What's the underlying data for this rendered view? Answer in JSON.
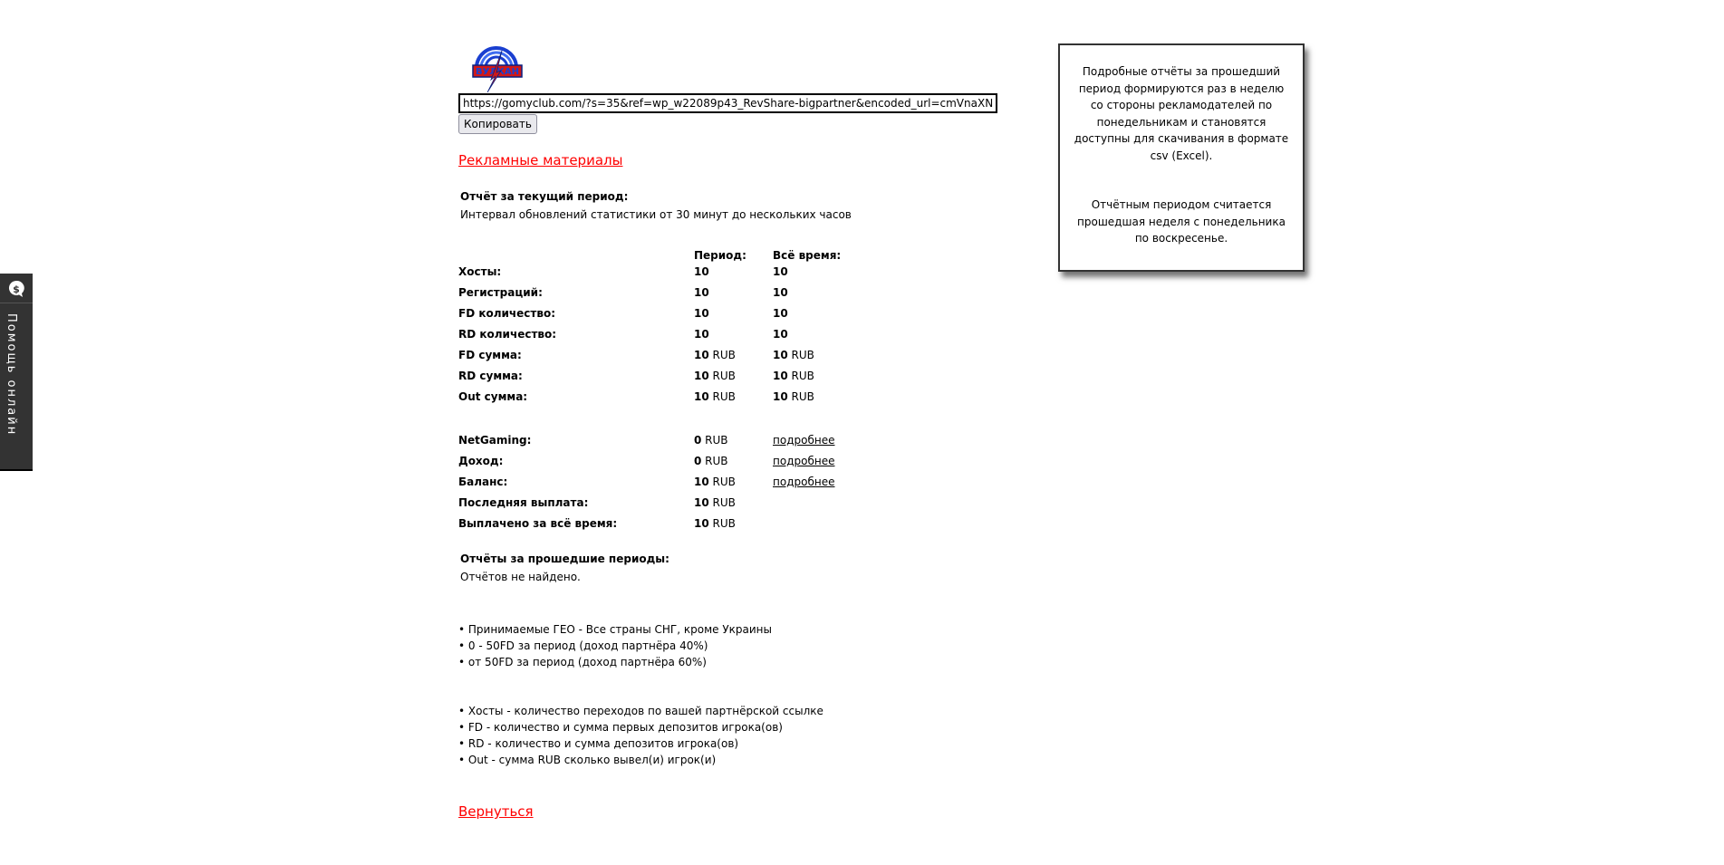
{
  "logo": {
    "text": "ВУЛКАН",
    "icon": "vulkan-logo"
  },
  "referral": {
    "url": "https://gomyclub.com/?s=35&ref=wp_w22089p43_RevShare-bigpartner&encoded_url=cmVnaXN",
    "copy_label": "Копировать"
  },
  "promo_link": "Рекламные материалы",
  "current_report": {
    "title": "Отчёт за текущий период:",
    "subtitle": "Интервал обновлений статистики от 30 минут до нескольких часов"
  },
  "stats": {
    "col_period": "Период:",
    "col_all": "Всё время:",
    "rows": [
      {
        "label": "Хосты:",
        "period": "10",
        "period_unit": "",
        "all": "10",
        "all_unit": ""
      },
      {
        "label": "Регистраций:",
        "period": "10",
        "period_unit": "",
        "all": "10",
        "all_unit": ""
      },
      {
        "label": "FD количество:",
        "period": "10",
        "period_unit": "",
        "all": "10",
        "all_unit": ""
      },
      {
        "label": "RD количество:",
        "period": "10",
        "period_unit": "",
        "all": "10",
        "all_unit": ""
      },
      {
        "label": "FD сумма:",
        "period": "10",
        "period_unit": " RUB",
        "all": "10",
        "all_unit": " RUB"
      },
      {
        "label": "RD сумма:",
        "period": "10",
        "period_unit": " RUB",
        "all": "10",
        "all_unit": " RUB"
      },
      {
        "label": "Out сумма:",
        "period": "10",
        "period_unit": " RUB",
        "all": "10",
        "all_unit": " RUB"
      }
    ],
    "finance": [
      {
        "label": "NetGaming:",
        "value": "0",
        "unit": " RUB",
        "link": "подробнее"
      },
      {
        "label": "Доход:",
        "value": "0",
        "unit": " RUB",
        "link": "подробнее"
      },
      {
        "label": "Баланс:",
        "value": "10",
        "unit": " RUB",
        "link": "подробнее"
      },
      {
        "label": "Последняя выплата:",
        "value": "10",
        "unit": " RUB",
        "link": ""
      },
      {
        "label": "Выплачено за всё время:",
        "value": "10",
        "unit": " RUB",
        "link": ""
      }
    ]
  },
  "past_reports": {
    "title": "Отчёты за прошедшие периоды:",
    "empty": "Отчётов не найдено."
  },
  "terms": [
    "Принимаемые ГЕО - Все страны СНГ, кроме Украины",
    "0 - 50FD за период (доход партнёра 40%)",
    "от 50FD за период (доход партнёра 60%)"
  ],
  "glossary": [
    "Хосты - количество переходов по вашей партнёрской ссылке",
    "FD - количество и сумма первых депозитов игрока(ов)",
    "RD - количество и сумма депозитов игрока(ов)",
    "Out - сумма RUB сколько вывел(и) игрок(и)"
  ],
  "back_link": "Вернуться",
  "info_box": {
    "p1": "Подробные отчёты за прошедший период формируются раз в неделю со стороны рекламодателей по понедельникам и становятся доступны для скачивания в формате csv (Excel).",
    "p2": "Отчётным периодом считается прошедшая неделя с понедельника по воскресенье."
  },
  "help_widget": {
    "label": "Помощь онлайн",
    "icon": "chat-dollar-icon"
  },
  "colors": {
    "link_red": "#ff0000",
    "widget_bg": "#333333"
  }
}
